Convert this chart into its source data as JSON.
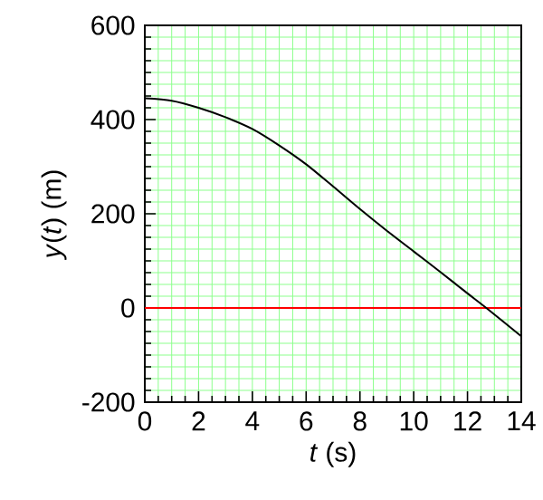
{
  "chart_data": {
    "type": "line",
    "xlabel": "*t* (s)",
    "ylabel": "*y*(*t*) (m)",
    "x": [
      0,
      1,
      2,
      3,
      4,
      5,
      6,
      7,
      8,
      9,
      10,
      11,
      12,
      12.7,
      14
    ],
    "series": [
      {
        "color": "#000000",
        "values": [
          445,
          440,
          425,
          405,
          380,
          345,
          305,
          258,
          210,
          164,
          120,
          76,
          31,
          0,
          -60
        ]
      }
    ],
    "xlim": [
      0,
      14
    ],
    "ylim": [
      -200,
      600
    ],
    "xticks": [
      0,
      2,
      4,
      6,
      8,
      10,
      12,
      14
    ],
    "yticks": [
      -200,
      0,
      200,
      400,
      600
    ],
    "ref_lines": [
      {
        "axis": "y",
        "value": 0,
        "color": "#ff0000"
      }
    ],
    "grid": true,
    "marker": "none",
    "line_style": "solid"
  }
}
